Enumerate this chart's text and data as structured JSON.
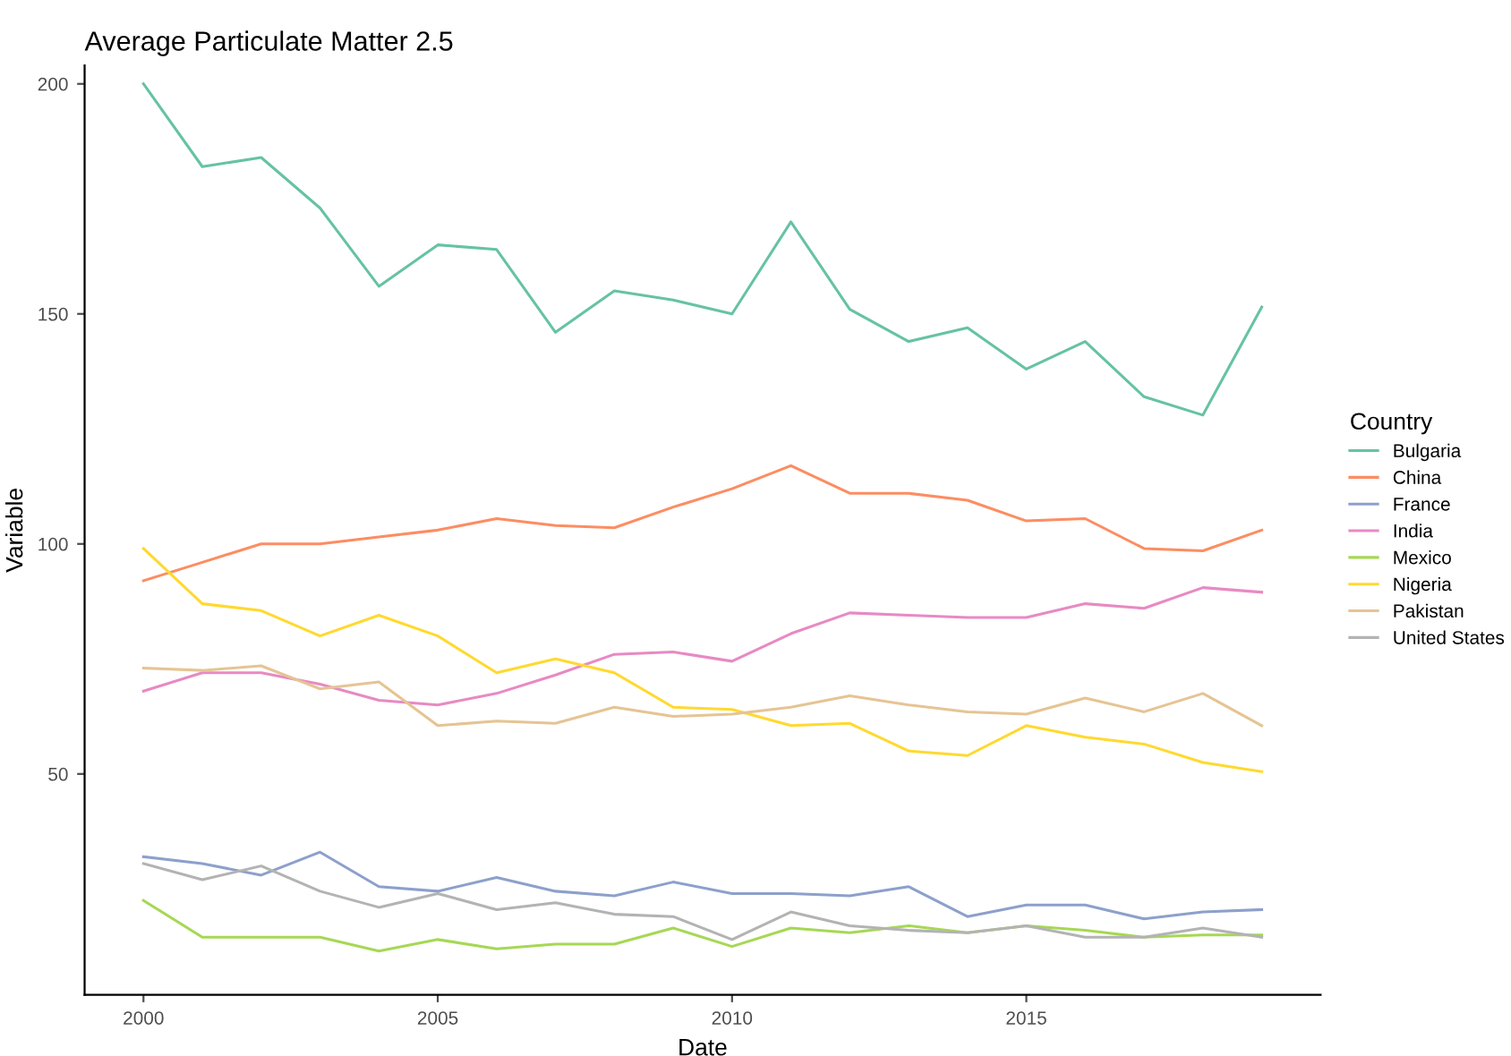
{
  "chart_data": {
    "type": "line",
    "title": "Average Particulate Matter 2.5",
    "xlabel": "Date",
    "ylabel": "Variable",
    "legend_title": "Country",
    "legend": "right",
    "grid": false,
    "x": [
      2000,
      2001,
      2002,
      2003,
      2004,
      2005,
      2006,
      2007,
      2008,
      2009,
      2010,
      2011,
      2012,
      2013,
      2014,
      2015,
      2016,
      2017,
      2018,
      2019
    ],
    "xlim": [
      1999,
      2020
    ],
    "xticks": [
      2000,
      2005,
      2010,
      2015
    ],
    "ylim": [
      2,
      204
    ],
    "yticks": [
      50,
      100,
      150,
      200
    ],
    "series": [
      {
        "name": "Bulgaria",
        "color": "#66c2a5",
        "values": [
          200,
          182,
          184,
          173,
          156,
          165,
          164,
          146,
          155,
          153,
          150,
          170,
          151,
          144,
          147,
          138,
          144,
          132,
          128,
          151.5
        ]
      },
      {
        "name": "China",
        "color": "#fc8d62",
        "values": [
          92,
          96,
          100,
          100,
          101.5,
          103,
          105.5,
          104,
          103.5,
          108,
          112,
          117,
          111,
          111,
          109.5,
          105,
          105.5,
          99,
          98.5,
          103
        ]
      },
      {
        "name": "France",
        "color": "#8da0cb",
        "values": [
          32,
          30.5,
          28,
          33,
          25.5,
          24.5,
          27.5,
          24.5,
          23.5,
          26.5,
          24,
          24,
          23.5,
          25.5,
          19,
          21.5,
          21.5,
          18.5,
          20,
          20.5
        ]
      },
      {
        "name": "India",
        "color": "#e78ac3",
        "values": [
          68,
          72,
          72,
          69.5,
          66,
          65,
          67.5,
          71.5,
          76,
          76.5,
          74.5,
          80.5,
          85,
          84.5,
          84,
          84,
          87,
          86,
          90.5,
          89.5
        ]
      },
      {
        "name": "Mexico",
        "color": "#a6d854",
        "values": [
          22.5,
          14.5,
          14.5,
          14.5,
          11.5,
          14,
          12,
          13,
          13,
          16.5,
          12.5,
          16.5,
          15.5,
          17,
          15.5,
          17,
          16,
          14.5,
          15,
          15
        ]
      },
      {
        "name": "Nigeria",
        "color": "#ffd92f",
        "values": [
          99,
          87,
          85.5,
          80,
          84.5,
          80,
          72,
          75,
          72,
          64.5,
          64,
          60.5,
          61,
          55,
          54,
          60.5,
          58,
          56.5,
          52.5,
          50.5
        ]
      },
      {
        "name": "Pakistan",
        "color": "#e5c494",
        "values": [
          73,
          72.5,
          73.5,
          68.5,
          70,
          60.5,
          61.5,
          61,
          64.5,
          62.5,
          63,
          64.5,
          67,
          65,
          63.5,
          63,
          66.5,
          63.5,
          67.5,
          60.5
        ]
      },
      {
        "name": "United States",
        "color": "#b3b3b3",
        "values": [
          30.5,
          27,
          30,
          24.5,
          21,
          24,
          20.5,
          22,
          19.5,
          19,
          14,
          20,
          17,
          16,
          15.5,
          17,
          14.5,
          14.5,
          16.5,
          14.5
        ]
      }
    ]
  }
}
